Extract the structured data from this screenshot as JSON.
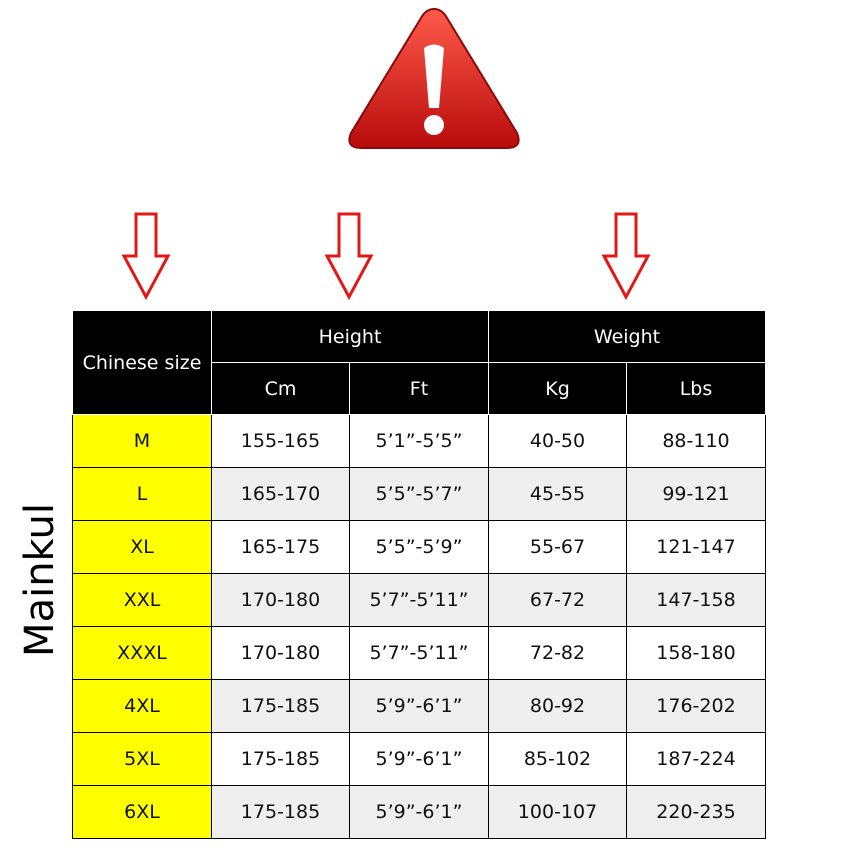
{
  "brand": "Mainkul",
  "colors": {
    "warning": "#e01818",
    "arrow": "#e01818",
    "size_highlight": "#ffff00",
    "header_bg": "#000000"
  },
  "icons": [
    "warning-triangle-icon",
    "arrow-down-icon"
  ],
  "table": {
    "size_header": "Chinese size",
    "height_header": "Height",
    "weight_header": "Weight",
    "units": [
      "Cm",
      "Ft",
      "Kg",
      "Lbs"
    ],
    "rows": [
      [
        "M",
        "155-165",
        "5’1”-5’5”",
        "40-50",
        "88-110"
      ],
      [
        "L",
        "165-170",
        "5’5”-5’7”",
        "45-55",
        "99-121"
      ],
      [
        "XL",
        "165-175",
        "5’5”-5’9”",
        "55-67",
        "121-147"
      ],
      [
        "XXL",
        "170-180",
        "5’7”-5’11”",
        "67-72",
        "147-158"
      ],
      [
        "XXXL",
        "170-180",
        "5’7”-5’11”",
        "72-82",
        "158-180"
      ],
      [
        "4XL",
        "175-185",
        "5’9”-6’1”",
        "80-92",
        "176-202"
      ],
      [
        "5XL",
        "175-185",
        "5’9”-6’1”",
        "85-102",
        "187-224"
      ],
      [
        "6XL",
        "175-185",
        "5’9”-6’1”",
        "100-107",
        "220-235"
      ]
    ]
  }
}
